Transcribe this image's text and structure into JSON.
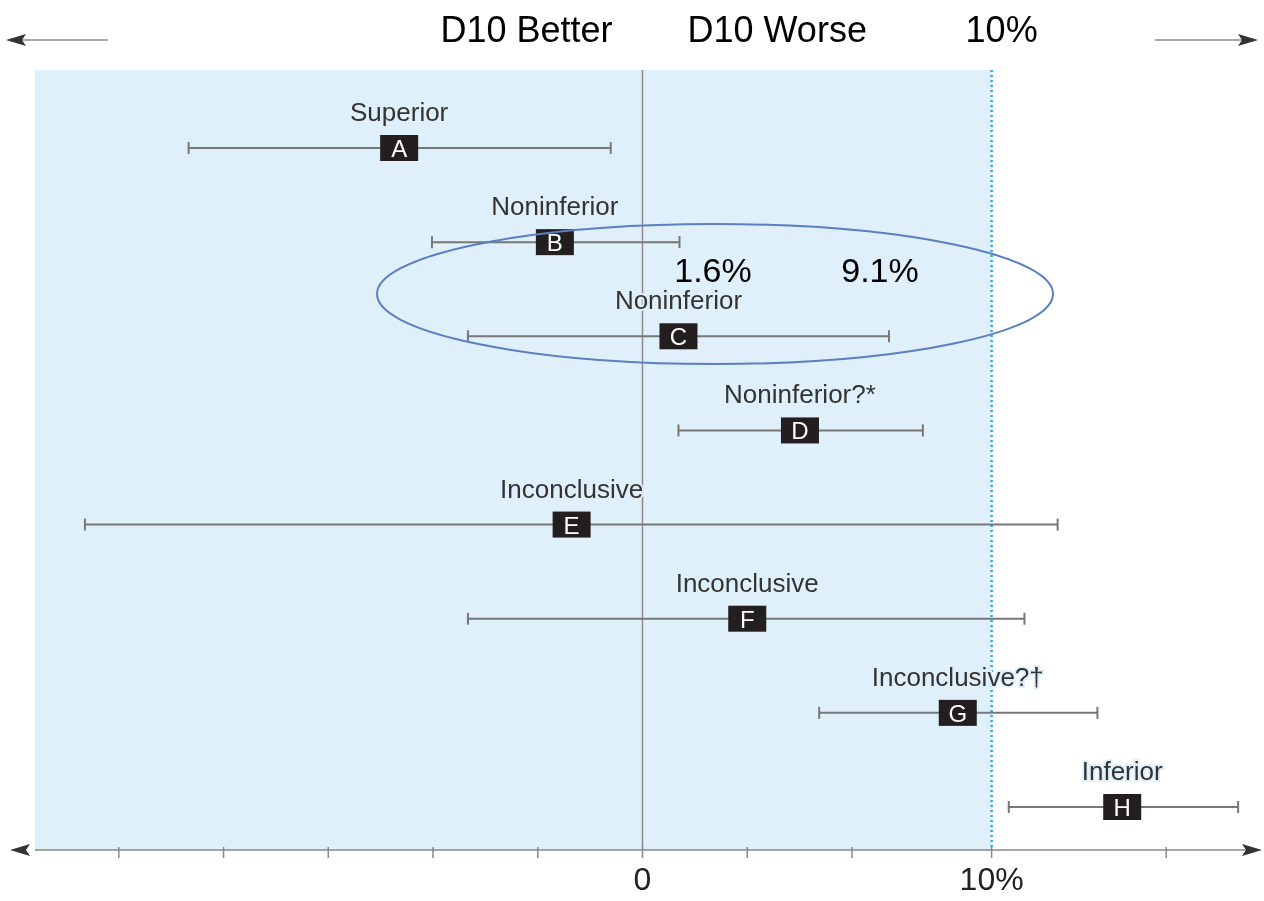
{
  "chart_data": {
    "type": "scatter",
    "orientation": "horizontal",
    "categories": [
      "A",
      "B",
      "C",
      "D",
      "E",
      "F",
      "G",
      "H"
    ],
    "values": [
      -6.97,
      -2.51,
      1.03,
      4.51,
      -2.03,
      3.0,
      9.03,
      13.74
    ],
    "errors": [
      [
        -13.0,
        -0.91
      ],
      [
        -6.03,
        1.06
      ],
      [
        -5.0,
        7.06
      ],
      [
        1.03,
        8.03
      ],
      [
        -15.97,
        11.89
      ],
      [
        -5.0,
        10.94
      ],
      [
        5.06,
        13.03
      ],
      [
        10.49,
        17.06
      ]
    ],
    "color": "#231f20",
    "marker": "square",
    "xlim": [
      -17.4,
      17.4
    ],
    "xticks": [
      {
        "value": -15,
        "label": null
      },
      {
        "value": -12,
        "label": null
      },
      {
        "value": -9,
        "label": null
      },
      {
        "value": -6,
        "label": null
      },
      {
        "value": -3,
        "label": null
      },
      0,
      {
        "value": 3,
        "label": null
      },
      {
        "value": 6,
        "label": null
      },
      {
        "value": 10,
        "label": "10%"
      },
      {
        "value": 15,
        "label": null
      }
    ],
    "tick_labels": "x",
    "grid": false,
    "bands": [
      {
        "axis": "x",
        "from": -17.4,
        "to": 10,
        "color": "#dff0fa"
      }
    ],
    "ref_lines": [
      {
        "axis": "x",
        "value": 0,
        "color": "#8c8c8c",
        "line_style": "solid"
      },
      {
        "axis": "x",
        "value": 10,
        "label": "10%",
        "color": "#29abe2",
        "line_style": "dotted"
      }
    ],
    "annotations": [
      "Superior",
      "Noninferior",
      "Noninferior",
      "Noninferior?*",
      "Inconclusive",
      "Inconclusive",
      "Inconclusive?†",
      "Inferior",
      "D10 Better",
      "D10 Worse",
      "1.6%",
      "9.1%"
    ]
  }
}
